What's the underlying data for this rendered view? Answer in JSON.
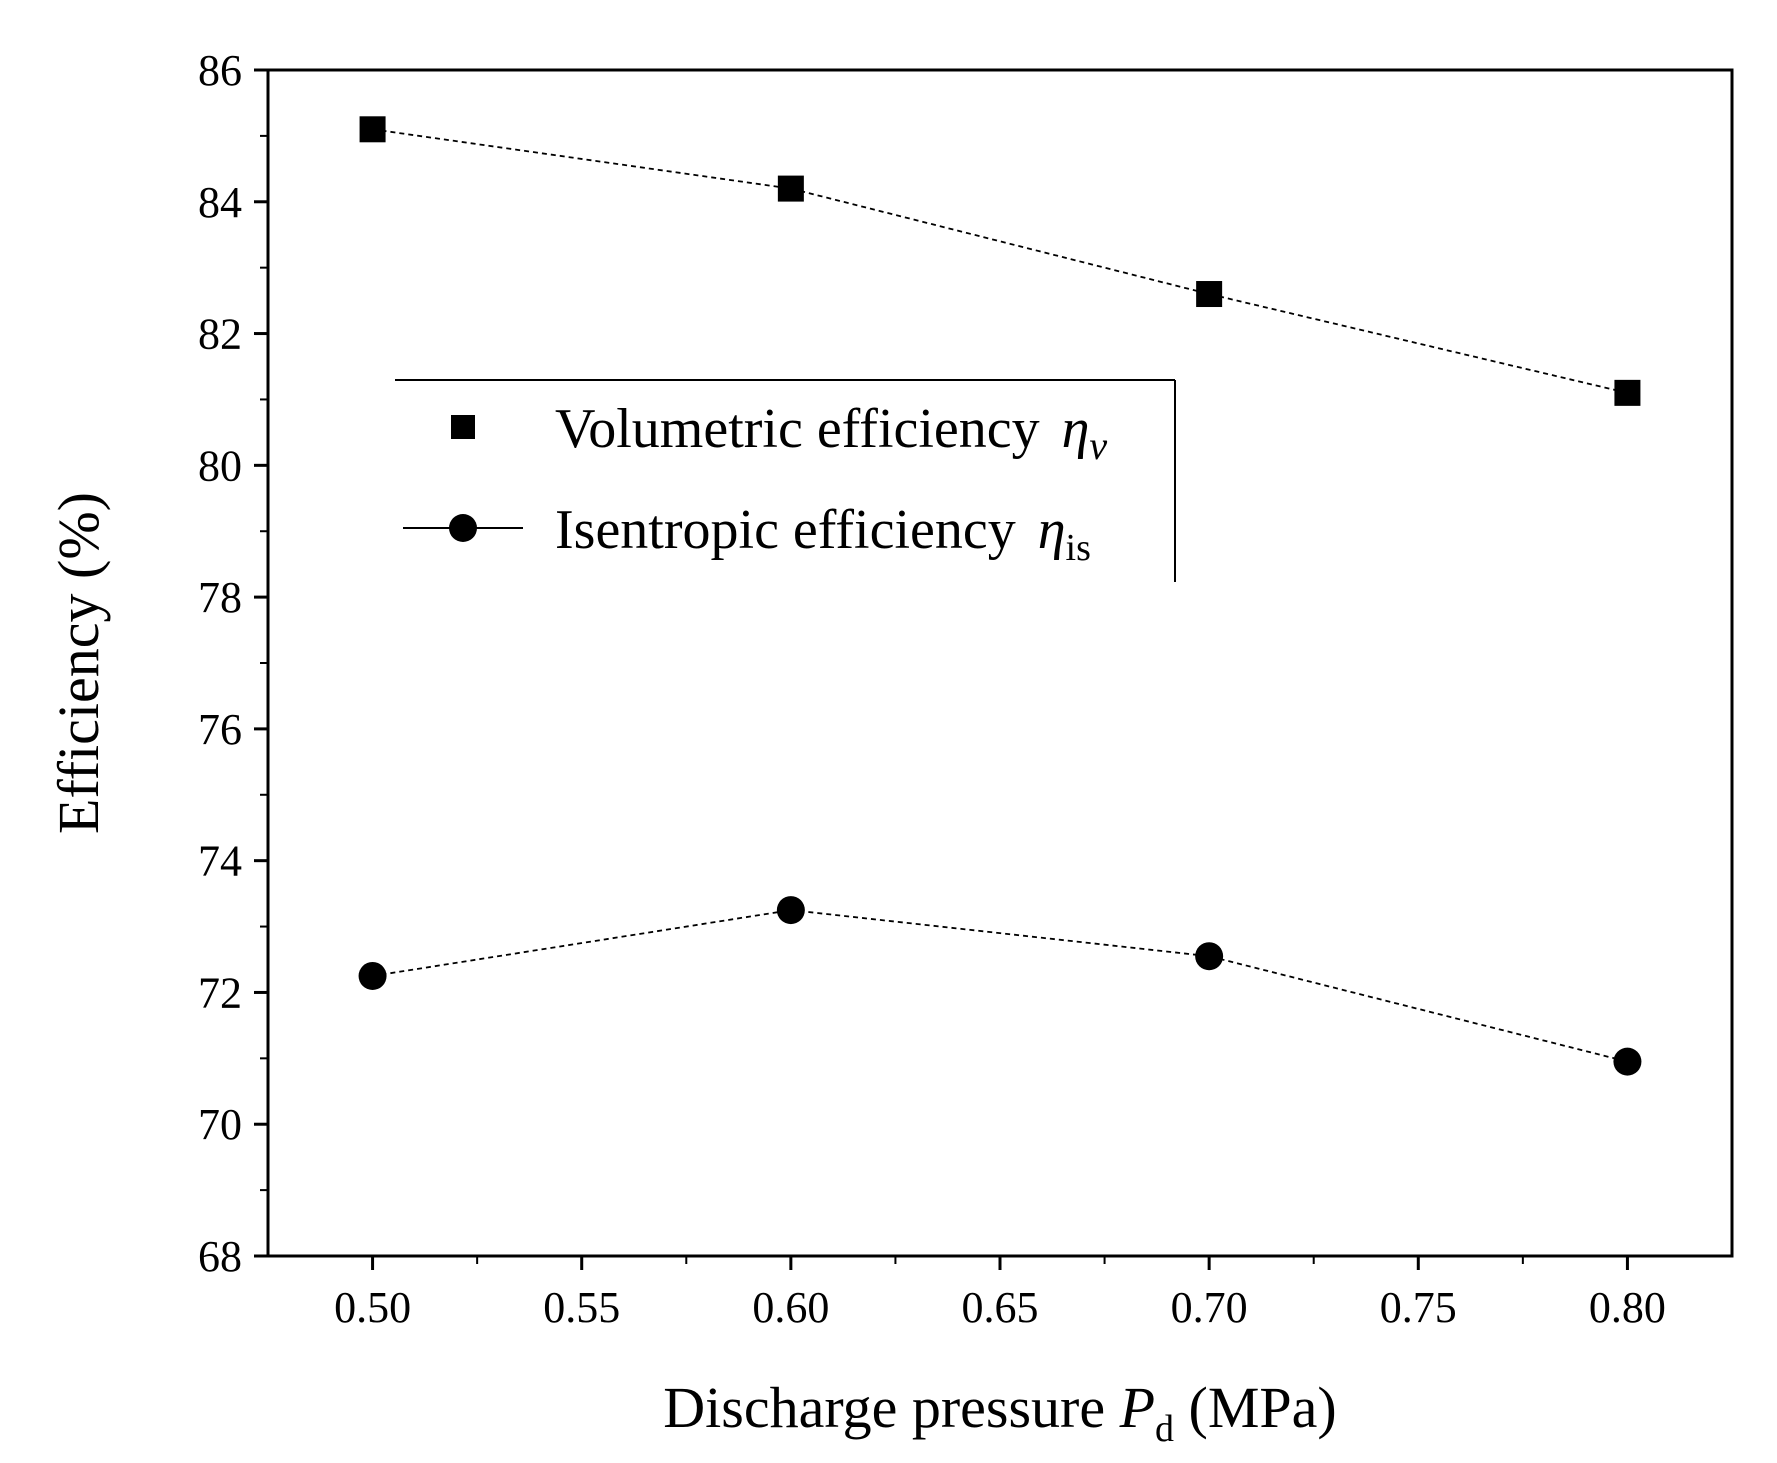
{
  "chart_data": {
    "type": "line",
    "xlabel": {
      "main": "Discharge pressure ",
      "symbol": "P",
      "subscript": "d",
      "unit": " (MPa)"
    },
    "ylabel": "Efficiency (%)",
    "xlim": [
      0.475,
      0.825
    ],
    "ylim": [
      68,
      86
    ],
    "xticks": [
      0.5,
      0.55,
      0.6,
      0.65,
      0.7,
      0.75,
      0.8
    ],
    "xtick_labels": [
      "0.50",
      "0.55",
      "0.60",
      "0.65",
      "0.70",
      "0.75",
      "0.80"
    ],
    "yticks": [
      68,
      70,
      72,
      74,
      76,
      78,
      80,
      82,
      84,
      86
    ],
    "ytick_labels": [
      "68",
      "70",
      "72",
      "74",
      "76",
      "78",
      "80",
      "82",
      "84",
      "86"
    ],
    "x": [
      0.5,
      0.6,
      0.7,
      0.8
    ],
    "series": [
      {
        "name": "Volumetric efficiency",
        "symbol": "η",
        "subscript": "v",
        "marker": "square",
        "values": [
          85.1,
          84.2,
          82.6,
          81.1
        ]
      },
      {
        "name": "Isentropic efficiency",
        "symbol": "η",
        "subscript": "is",
        "marker": "circle",
        "values": [
          72.25,
          73.25,
          72.55,
          70.95
        ]
      }
    ],
    "legend_position": "upper-left",
    "grid": false
  }
}
